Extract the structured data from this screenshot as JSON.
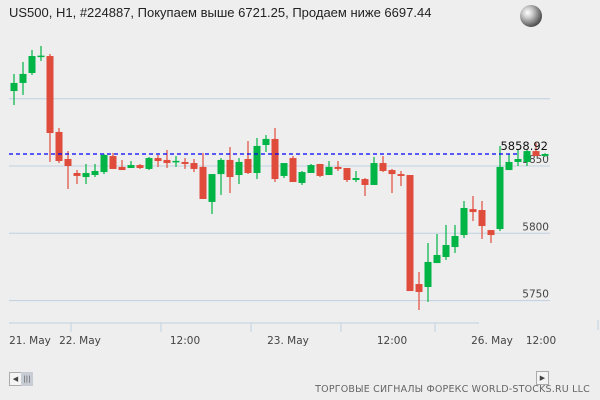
{
  "header": {
    "title": "US500, H1, #224887, Покупаем выше 6721.25, Продаем ниже 6697.44",
    "globe_icon": "globe-icon"
  },
  "footer": {
    "credits": "ТОРГОВЫЕ СИГНАЛЫ ФОРЕКС WORLD-STOCKS.RU LLC"
  },
  "scrollbar": {
    "left_icon": "arrow-left-icon",
    "right_icon": "arrow-right-icon",
    "thumb_icon": "grip-icon"
  },
  "colors": {
    "up": "#00b446",
    "down": "#e04c3c",
    "grid": "#c0d0e0",
    "last_price_line": "#0000ff"
  },
  "chart_data": {
    "type": "candlestick",
    "title": "US500, H1, #224887, Покупаем выше 6721.25, Продаем ниже 6697.44",
    "ylim": [
      5720,
      5945
    ],
    "y_ticks": [
      5750,
      5800,
      5850,
      5900
    ],
    "y_tick_labels": [
      "5750",
      "5800",
      "5850",
      ""
    ],
    "x_tick_labels": [
      "21. May",
      "22. May",
      "12:00",
      "23. May",
      "12:00",
      "26. May",
      "12:00"
    ],
    "grid": true,
    "last_price": 5858.92,
    "last_price_label": "5858.92",
    "ohlc": [
      [
        5905.7,
        5918.4,
        5895.3,
        5911.7
      ],
      [
        5911.7,
        5927.3,
        5902.8,
        5918.4
      ],
      [
        5919.1,
        5936.2,
        5917.6,
        5931.7
      ],
      [
        5931.0,
        5939.2,
        5928.0,
        5932.0
      ],
      [
        5931.7,
        5933.2,
        5853.0,
        5874.5
      ],
      [
        5875.3,
        5878.2,
        5852.2,
        5853.7
      ],
      [
        5855.2,
        5861.1,
        5832.9,
        5850.0
      ],
      [
        5844.8,
        5847.0,
        5836.6,
        5842.6
      ],
      [
        5841.8,
        5851.5,
        5836.6,
        5844.8
      ],
      [
        5843.3,
        5851.5,
        5841.8,
        5846.3
      ],
      [
        5845.5,
        5859.0,
        5844.0,
        5858.2
      ],
      [
        5857.4,
        5859.7,
        5847.8,
        5847.8
      ],
      [
        5849.3,
        5854.5,
        5847.0,
        5847.0
      ],
      [
        5848.5,
        5853.7,
        5848.5,
        5850.7
      ],
      [
        5850.7,
        5851.5,
        5847.8,
        5848.5
      ],
      [
        5847.8,
        5856.7,
        5847.0,
        5855.9
      ],
      [
        5855.9,
        5858.2,
        5849.3,
        5853.7
      ],
      [
        5854.5,
        5861.9,
        5848.5,
        5852.2
      ],
      [
        5853.7,
        5857.4,
        5849.3,
        5853.8
      ],
      [
        5853.0,
        5855.9,
        5847.8,
        5851.5
      ],
      [
        5852.2,
        5855.2,
        5845.5,
        5847.8
      ],
      [
        5849.3,
        5859.7,
        5825.5,
        5825.5
      ],
      [
        5823.3,
        5844.0,
        5814.3,
        5844.0
      ],
      [
        5844.0,
        5855.9,
        5828.5,
        5854.5
      ],
      [
        5854.5,
        5864.1,
        5829.9,
        5841.8
      ],
      [
        5843.3,
        5855.9,
        5836.6,
        5853.0
      ],
      [
        5855.2,
        5868.6,
        5844.0,
        5844.8
      ],
      [
        5844.8,
        5870.8,
        5840.3,
        5864.9
      ],
      [
        5865.6,
        5873.0,
        5860.4,
        5870.1
      ],
      [
        5870.1,
        5878.2,
        5838.1,
        5840.3
      ],
      [
        5842.6,
        5852.2,
        5841.1,
        5852.2
      ],
      [
        5855.9,
        5857.4,
        5838.1,
        5838.1
      ],
      [
        5837.4,
        5846.3,
        5835.9,
        5845.5
      ],
      [
        5844.8,
        5851.5,
        5844.8,
        5850.7
      ],
      [
        5851.5,
        5851.5,
        5841.8,
        5842.6
      ],
      [
        5843.3,
        5853.7,
        5843.3,
        5849.3
      ],
      [
        5849.3,
        5853.7,
        5846.3,
        5847.8
      ],
      [
        5848.5,
        5848.5,
        5838.1,
        5839.6
      ],
      [
        5839.6,
        5846.3,
        5838.1,
        5841.1
      ],
      [
        5840.3,
        5841.1,
        5827.7,
        5835.9
      ],
      [
        5835.9,
        5856.7,
        5835.9,
        5852.2
      ],
      [
        5852.2,
        5857.4,
        5845.5,
        5846.3
      ],
      [
        5847.0,
        5847.8,
        5829.9,
        5844.0
      ],
      [
        5844.0,
        5846.3,
        5835.1,
        5842.6
      ],
      [
        5843.3,
        5843.3,
        5757.1,
        5757.1
      ],
      [
        5762.3,
        5771.2,
        5743.0,
        5756.4
      ],
      [
        5760.1,
        5792.8,
        5749.0,
        5778.7
      ],
      [
        5777.9,
        5799.5,
        5777.9,
        5783.9
      ],
      [
        5782.4,
        5806.2,
        5780.2,
        5791.3
      ],
      [
        5789.8,
        5806.2,
        5785.4,
        5798.0
      ],
      [
        5798.7,
        5824.0,
        5796.5,
        5818.8
      ],
      [
        5818.0,
        5827.7,
        5809.1,
        5815.8
      ],
      [
        5817.3,
        5824.0,
        5795.8,
        5805.4
      ],
      [
        5802.4,
        5802.4,
        5792.8,
        5798.7
      ],
      [
        5803.2,
        5864.9,
        5801.7,
        5849.3
      ],
      [
        5847.0,
        5858.9,
        5847.0,
        5853.0
      ],
      [
        5853.0,
        5861.9,
        5850.0,
        5855.2
      ],
      [
        5853.0,
        5861.9,
        5850.0,
        5861.1
      ],
      [
        5861.1,
        5867.1,
        5857.4,
        5857.4
      ],
      [
        5857.4,
        5859.5,
        5857.0,
        5858.92
      ]
    ]
  }
}
